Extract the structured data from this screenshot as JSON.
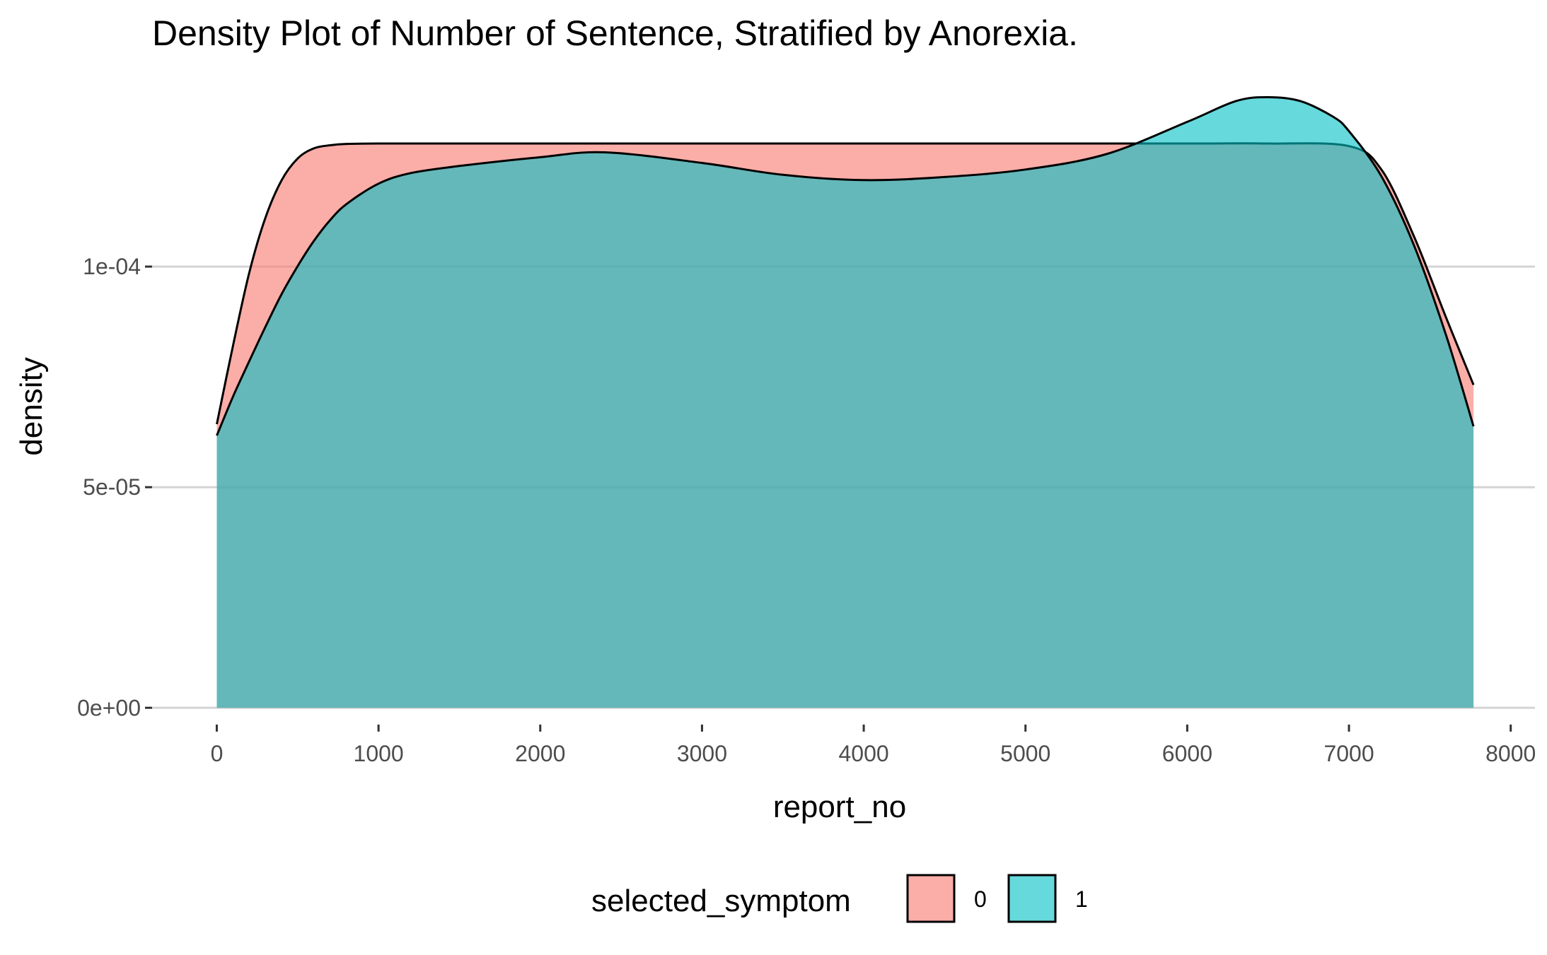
{
  "chart_data": {
    "type": "area",
    "title": "Density Plot of Number of Sentence, Stratified by Anorexia.",
    "xlabel": "report_no",
    "ylabel": "density",
    "xlim": [
      -400,
      8150
    ],
    "ylim": [
      -3e-06,
      0.000142
    ],
    "x_ticks": [
      {
        "value": 0,
        "label": "0"
      },
      {
        "value": 1000,
        "label": "1000"
      },
      {
        "value": 2000,
        "label": "2000"
      },
      {
        "value": 3000,
        "label": "3000"
      },
      {
        "value": 4000,
        "label": "4000"
      },
      {
        "value": 5000,
        "label": "5000"
      },
      {
        "value": 6000,
        "label": "6000"
      },
      {
        "value": 7000,
        "label": "7000"
      },
      {
        "value": 8000,
        "label": "8000"
      }
    ],
    "y_ticks": [
      {
        "value": 0,
        "label": "0e+00"
      },
      {
        "value": 5e-05,
        "label": "5e-05"
      },
      {
        "value": 0.0001,
        "label": "1e-04"
      }
    ],
    "grid": "horizontal major",
    "legend": {
      "title": "selected_symptom",
      "position": "bottom",
      "items": [
        {
          "label": "0",
          "color": "#F8766D"
        },
        {
          "label": "1",
          "color": "#00BFC4"
        }
      ]
    },
    "series": [
      {
        "name": "0",
        "color": "#F8766D",
        "x": [
          0,
          100,
          200,
          300,
          400,
          500,
          600,
          700,
          800,
          1000,
          1500,
          2000,
          3000,
          4000,
          5000,
          6000,
          6500,
          7000,
          7200,
          7400,
          7600,
          7770
        ],
        "y": [
          6.43e-05,
          8.2e-05,
          9.85e-05,
          0.000111,
          0.0001195,
          0.0001245,
          0.0001268,
          0.0001275,
          0.0001278,
          0.0001279,
          0.0001279,
          0.0001279,
          0.0001279,
          0.0001279,
          0.0001279,
          0.0001279,
          0.0001279,
          0.0001273,
          0.000122,
          0.000107,
          8.85e-05,
          7.32e-05
        ]
      },
      {
        "name": "1",
        "color": "#00BFC4",
        "x": [
          0,
          100,
          200,
          300,
          400,
          500,
          600,
          700,
          800,
          1000,
          1200,
          1500,
          2000,
          2400,
          3000,
          3500,
          4000,
          4500,
          5000,
          5500,
          6000,
          6300,
          6500,
          6700,
          6900,
          7000,
          7200,
          7400,
          7600,
          7770
        ],
        "y": [
          6.17e-05,
          7.05e-05,
          7.85e-05,
          8.63e-05,
          9.37e-05,
          0.0001001,
          0.0001058,
          0.0001105,
          0.0001141,
          0.0001188,
          0.0001212,
          0.0001228,
          0.0001248,
          0.0001259,
          0.0001235,
          0.0001208,
          0.0001196,
          0.0001203,
          0.000122,
          0.0001255,
          0.0001328,
          0.0001375,
          0.0001384,
          0.0001375,
          0.000134,
          0.0001307,
          0.0001205,
          0.000105,
          8.45e-05,
          6.38e-05
        ]
      }
    ]
  }
}
